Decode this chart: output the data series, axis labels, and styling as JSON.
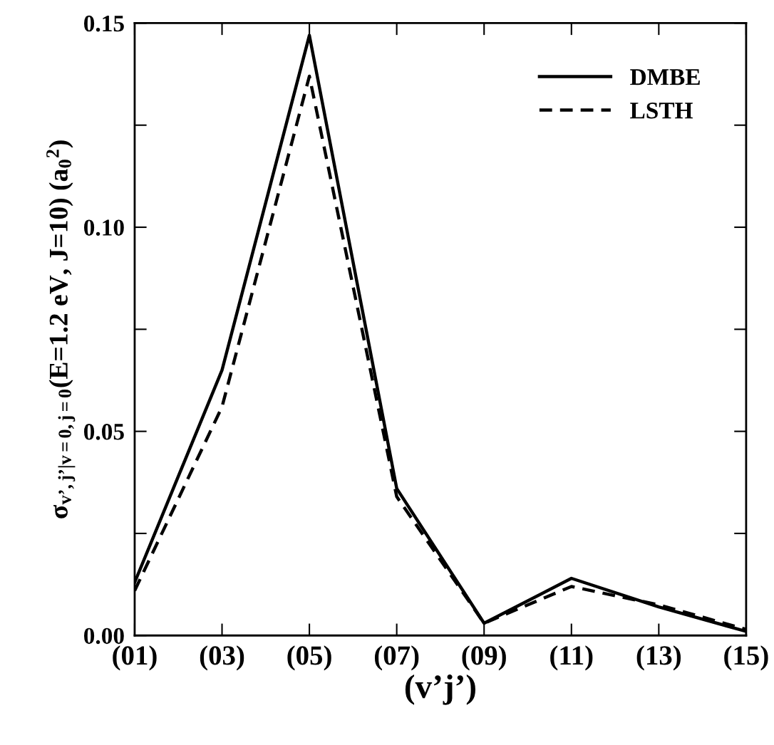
{
  "chart_data": {
    "type": "line",
    "xlabel": "(v’j’)",
    "ylabel": "σ$_{v’,j’|v=0,j=0}$(E=1.2 eV, J=10) (a$_{0}$$^{2}$)",
    "categories": [
      "(01)",
      "(03)",
      "(05)",
      "(07)",
      "(09)",
      "(11)",
      "(13)",
      "(15)"
    ],
    "series": [
      {
        "name": "DMBE",
        "color": "#000000",
        "line_style": "solid",
        "values": [
          0.013,
          0.065,
          0.147,
          0.036,
          0.003,
          0.014,
          0.007,
          0.001
        ]
      },
      {
        "name": "LSTH",
        "color": "#000000",
        "line_style": "dashed",
        "values": [
          0.011,
          0.056,
          0.137,
          0.034,
          0.003,
          0.012,
          0.0075,
          0.0015
        ]
      }
    ],
    "ylim": [
      0,
      0.15
    ],
    "yticks": [
      {
        "value": 0,
        "label": "0.00"
      },
      {
        "value": 0.05,
        "label": "0.05"
      },
      {
        "value": 0.1,
        "label": "0.10"
      },
      {
        "value": 0.15,
        "label": "0.15"
      }
    ],
    "legend": "top right",
    "grid": false
  }
}
